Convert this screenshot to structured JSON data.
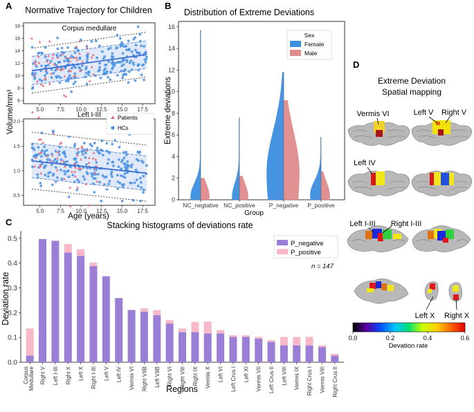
{
  "figure": {
    "panels": {
      "a": "A",
      "b": "B",
      "c": "C",
      "d": "D"
    }
  },
  "chart_data": [
    {
      "panel": "A",
      "type": "scatter",
      "title": "Normative Trajectory for Children",
      "xlabel": "Age (years)",
      "ylabel": "Volume/mm³",
      "legend": {
        "patients": "Patients",
        "hcs": "HCs"
      },
      "colors": {
        "patients": "#e8767e",
        "hcs": "#4a90e2",
        "fit": "#3a6fd0",
        "band": "#dbe7fa"
      },
      "subplots": [
        {
          "title": "Corpus medullare",
          "xlim": [
            3,
            19
          ],
          "ylim": [
            5.5,
            18.5
          ],
          "yticks": [
            6,
            8,
            10,
            12,
            14,
            16,
            18
          ],
          "xticks": [
            5.0,
            7.5,
            10.0,
            12.5,
            15.0,
            17.5
          ],
          "xtick_labels": [
            "5.0",
            "7.5",
            "10.0",
            "12.5",
            "15.0",
            "17.5"
          ],
          "fit": [
            [
              4,
              10.8
            ],
            [
              18,
              13.4
            ]
          ],
          "inner_band": [
            [
              4,
              8.5,
              13.1
            ],
            [
              18,
              11.2,
              15.6
            ]
          ],
          "outer_band": [
            [
              4,
              7.2,
              14.4
            ],
            [
              18,
              9.8,
              17.0
            ]
          ]
        },
        {
          "title": "Left I-III",
          "xlim": [
            3,
            19
          ],
          "ylim": [
            0.3,
            2.05
          ],
          "yticks": [
            0.5,
            1.0,
            1.5,
            2.0
          ],
          "ytick_labels": [
            "0.5",
            "1.0",
            "1.5",
            "2.0"
          ],
          "xticks": [
            5.0,
            7.5,
            10.0,
            12.5,
            15.0,
            17.5
          ],
          "xtick_labels": [
            "5.0",
            "7.5",
            "10.0",
            "12.5",
            "15.0",
            "17.5"
          ],
          "fit": [
            [
              4,
              1.2
            ],
            [
              18,
              0.95
            ]
          ],
          "inner_band": [
            [
              4,
              0.86,
              1.56
            ],
            [
              18,
              0.6,
              1.3
            ]
          ],
          "outer_band": [
            [
              4,
              0.63,
              1.78
            ],
            [
              18,
              0.38,
              1.52
            ]
          ]
        }
      ]
    },
    {
      "panel": "B",
      "type": "violin",
      "title": "Distribution of Extreme Deviations",
      "xlabel": "Group",
      "ylabel": "Extreme deviations",
      "ylim": [
        0,
        16.5
      ],
      "yticks": [
        0,
        2,
        4,
        6,
        8,
        10,
        12,
        14,
        16
      ],
      "categories": [
        "NC_negtative",
        "NC_positive",
        "P_negative",
        "P_positive"
      ],
      "legend_title": "Sex",
      "series": [
        {
          "name": "Female",
          "color": "#3d8fe0",
          "max": [
            15.7,
            7.6,
            11.8,
            5.8
          ],
          "peak_y": [
            0.3,
            0.3,
            2.5,
            0.5
          ]
        },
        {
          "name": "Male",
          "color": "#e08c8c",
          "max": [
            2.0,
            2.2,
            9.2,
            2.6
          ],
          "peak_y": [
            0.3,
            0.3,
            2.5,
            0.4
          ]
        }
      ]
    },
    {
      "panel": "C",
      "type": "bar",
      "stacked": true,
      "title": "Stacking histograms of  deviations rate",
      "xlabel": "Regions",
      "ylabel": "Deviation rate",
      "ylim": [
        0,
        0.53
      ],
      "yticks": [
        0.0,
        0.1,
        0.2,
        0.3,
        0.4,
        0.5
      ],
      "ytick_labels": [
        "0.0",
        "0.1",
        "0.2",
        "0.3",
        "0.4",
        "0.5"
      ],
      "annotation": "n = 147",
      "categories": [
        "Corpus\nMedullare",
        "Right V",
        "Left I-III",
        "Right X",
        "Left X",
        "Right I-III",
        "Left V",
        "Left IV",
        "Vermis VI",
        "Right VIIB",
        "Left VIIB",
        "Right VI",
        "Right VIII",
        "Right IX",
        "Vermis X",
        "Left VI",
        "Left Crus I",
        "Left XI",
        "Vermis VII",
        "Left Crus II",
        "Left VIII",
        "Vermis IX",
        "Right Crus I",
        "Vermis VIII",
        "Right Crus II"
      ],
      "series": [
        {
          "name": "P_negative",
          "color": "#9b7fd6",
          "values": [
            0.027,
            0.497,
            0.49,
            0.443,
            0.429,
            0.388,
            0.347,
            0.259,
            0.211,
            0.204,
            0.19,
            0.156,
            0.122,
            0.122,
            0.116,
            0.116,
            0.102,
            0.102,
            0.095,
            0.082,
            0.068,
            0.068,
            0.068,
            0.061,
            0.027
          ]
        },
        {
          "name": "P_positive",
          "color": "#f7b8c8",
          "values": [
            0.109,
            0.0,
            0.0,
            0.034,
            0.027,
            0.014,
            0.0,
            0.0,
            0.0,
            0.014,
            0.02,
            0.014,
            0.014,
            0.041,
            0.048,
            0.014,
            0.007,
            0.007,
            0.007,
            0.007,
            0.034,
            0.034,
            0.034,
            0.007,
            0.007
          ]
        }
      ]
    }
  ],
  "panel_d": {
    "title_line1": "Extreme Deviation",
    "title_line2": "Spatial mapping",
    "labels": {
      "vermis_vi": "Vermis VI",
      "left_v": "Left V",
      "right_v": "Right V",
      "left_iv": "Left IV",
      "left_i_iii": "Left I-III",
      "right_i_iii": "Right I-III",
      "left_x": "Left X",
      "right_x": "Right X"
    },
    "colorbar": {
      "label": "Devation rate",
      "ticks": [
        "0.0",
        "0.2",
        "0.4",
        "0.6"
      ],
      "stops": [
        "#000000",
        "#5a00a0",
        "#0050ff",
        "#00c8ff",
        "#00e070",
        "#c8ff00",
        "#ffd000",
        "#ff6000",
        "#e00000"
      ]
    }
  }
}
